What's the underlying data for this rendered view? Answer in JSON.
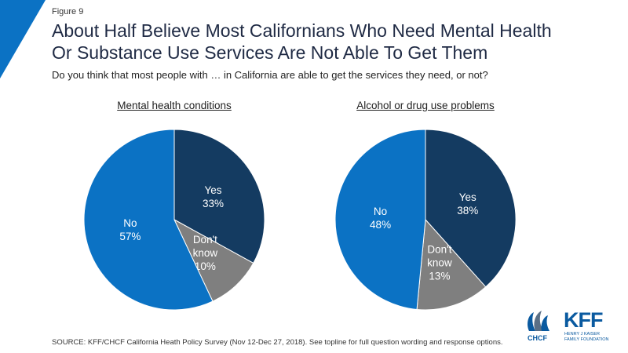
{
  "figure_label": "Figure 9",
  "title_line1": "About Half Believe Most Californians Who Need Mental Health",
  "title_line2": "Or Substance Use Services Are Not Able To Get Them",
  "subtitle": "Do you think that most people with … in California are able to get the services they need, or not?",
  "source": "SOURCE: KFF/CHCF California Heath Policy Survey (Nov 12-Dec 27, 2018). See topline for full question wording and response options.",
  "logos": {
    "chcf_text": "CHCF",
    "kff_text": "KFF",
    "kff_sub_line1": "HENRY J KAISER",
    "kff_sub_line2": "FAMILY FOUNDATION"
  },
  "colors": {
    "yes": "#143b61",
    "dont_know": "#7f7f7f",
    "no": "#0b72c4",
    "corner": "#0b72c4"
  },
  "chart_data": [
    {
      "type": "pie",
      "title": "Mental health conditions",
      "slices": [
        {
          "key": "yes",
          "label_lines": [
            "Yes"
          ],
          "value": 33,
          "value_label": "33%"
        },
        {
          "key": "dont_know",
          "label_lines": [
            "Don't",
            "know"
          ],
          "value": 10,
          "value_label": "10%"
        },
        {
          "key": "no",
          "label_lines": [
            "No"
          ],
          "value": 57,
          "value_label": "57%"
        }
      ]
    },
    {
      "type": "pie",
      "title": "Alcohol or drug use problems",
      "slices": [
        {
          "key": "yes",
          "label_lines": [
            "Yes"
          ],
          "value": 38,
          "value_label": "38%"
        },
        {
          "key": "dont_know",
          "label_lines": [
            "Don't",
            "know"
          ],
          "value": 13,
          "value_label": "13%"
        },
        {
          "key": "no",
          "label_lines": [
            "No"
          ],
          "value": 48,
          "value_label": "48%"
        }
      ]
    }
  ]
}
